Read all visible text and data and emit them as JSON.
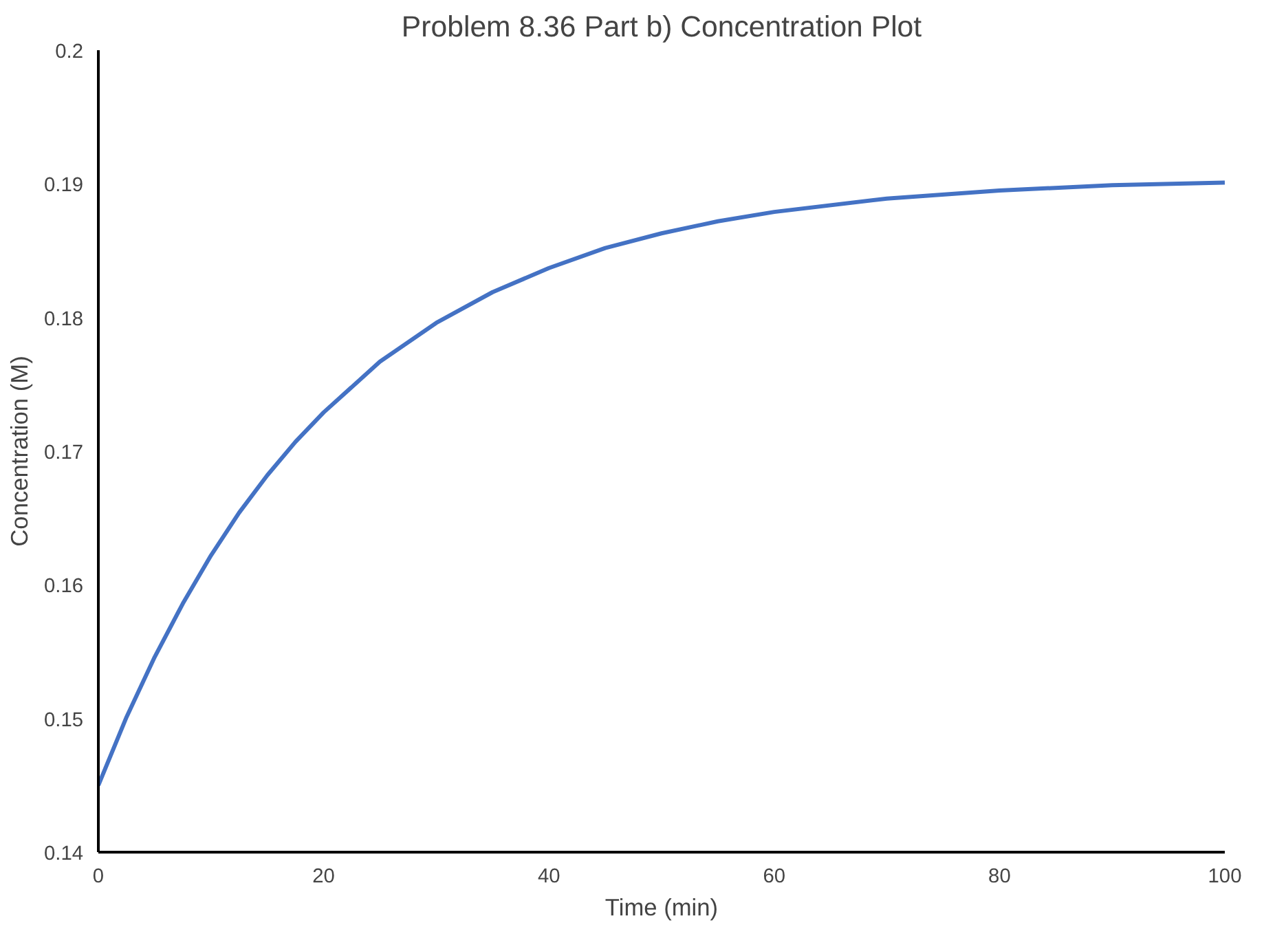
{
  "chart_data": {
    "type": "line",
    "title": "Problem 8.36 Part b) Concentration Plot",
    "xlabel": "Time (min)",
    "ylabel": "Concentration (M)",
    "x": [
      0,
      2.5,
      5,
      7.5,
      10,
      12.5,
      15,
      17.5,
      20,
      25,
      30,
      35,
      40,
      45,
      50,
      55,
      60,
      70,
      80,
      90,
      100
    ],
    "series": [
      {
        "color": "#4472c4",
        "values": [
          0.145,
          0.1501,
          0.1546,
          0.1586,
          0.1622,
          0.1654,
          0.1682,
          0.1707,
          0.1729,
          0.1767,
          0.1796,
          0.1819,
          0.1837,
          0.1852,
          0.1863,
          0.1872,
          0.1879,
          0.1889,
          0.1895,
          0.1899,
          0.1901
        ]
      }
    ],
    "xlim": [
      0,
      100
    ],
    "xticks": [
      0,
      20,
      40,
      60,
      80,
      100
    ],
    "ylim": [
      0.14,
      0.2
    ],
    "yticks": [
      0.14,
      0.15,
      0.16,
      0.17,
      0.18,
      0.19,
      0.2
    ],
    "grid": false,
    "marker": "none",
    "line_style": "solid"
  }
}
